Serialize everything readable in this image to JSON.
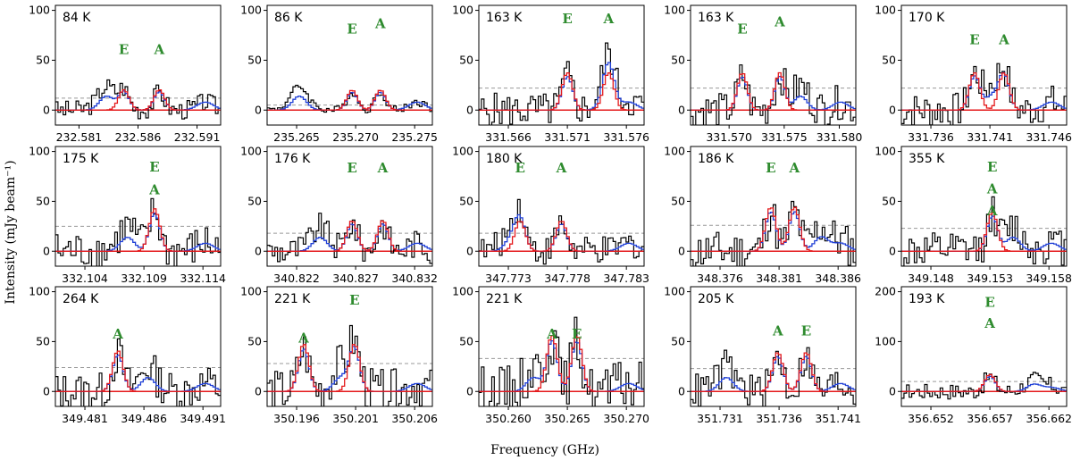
{
  "chart_data": {
    "type": "line",
    "title": "",
    "xlabel": "Frequency (GHz)",
    "ylabel": "Intensity (mJy beam$^{-1}$)",
    "ylabel_display": "Intensity (mJy beam⁻¹)",
    "colors": {
      "observed": "#000000",
      "model_target": "#e41a1c",
      "model_total": "#1f3fd6",
      "noise": "#999999",
      "annotation": "#2e8b2e"
    },
    "panels": [
      {
        "label": "84 K",
        "ticks": [
          "232.581",
          "232.586",
          "232.591"
        ],
        "xlim": [
          232.579,
          232.593
        ],
        "ylim": [
          -15,
          105
        ],
        "yticks": [
          0,
          50,
          100
        ],
        "noise": 12,
        "annotations": [
          {
            "text": "E",
            "x": 232.5848,
            "y": 56
          },
          {
            "text": "A",
            "x": 232.5878,
            "y": 56
          }
        ]
      },
      {
        "label": "86 K",
        "ticks": [
          "235.265",
          "235.270",
          "235.275"
        ],
        "xlim": [
          235.2625,
          235.2765
        ],
        "ylim": [
          -15,
          105
        ],
        "yticks": [
          0,
          50,
          100
        ],
        "noise": 5,
        "annotations": [
          {
            "text": "E",
            "x": 235.2697,
            "y": 77
          },
          {
            "text": "A",
            "x": 235.2721,
            "y": 82
          }
        ]
      },
      {
        "label": "163 K",
        "ticks": [
          "331.566",
          "331.571",
          "331.576"
        ],
        "xlim": [
          331.5635,
          331.5775
        ],
        "ylim": [
          -15,
          105
        ],
        "yticks": [
          0,
          50,
          100
        ],
        "noise": 22,
        "annotations": [
          {
            "text": "E",
            "x": 331.571,
            "y": 87
          },
          {
            "text": "A",
            "x": 331.5745,
            "y": 87
          }
        ]
      },
      {
        "label": "163 K",
        "ticks": [
          "331.570",
          "331.575",
          "331.580"
        ],
        "xlim": [
          331.5665,
          331.5815
        ],
        "ylim": [
          -15,
          105
        ],
        "yticks": [
          0,
          50,
          100
        ],
        "noise": 22,
        "annotations": [
          {
            "text": "E",
            "x": 331.5712,
            "y": 77
          },
          {
            "text": "A",
            "x": 331.5746,
            "y": 84
          }
        ]
      },
      {
        "label": "170 K",
        "ticks": [
          "331.736",
          "331.741",
          "331.746"
        ],
        "xlim": [
          331.7335,
          331.7475
        ],
        "ylim": [
          -15,
          105
        ],
        "yticks": [
          0,
          50,
          100
        ],
        "noise": 22,
        "annotations": [
          {
            "text": "E",
            "x": 331.7397,
            "y": 66
          },
          {
            "text": "A",
            "x": 331.7422,
            "y": 66
          }
        ]
      },
      {
        "label": "175 K",
        "ticks": [
          "332.104",
          "332.109",
          "332.114"
        ],
        "xlim": [
          332.1015,
          332.1155
        ],
        "ylim": [
          -15,
          105
        ],
        "yticks": [
          0,
          50,
          100
        ],
        "noise": 25,
        "annotations": [
          {
            "text": "E",
            "x": 332.1099,
            "y": 80
          },
          {
            "text": "A",
            "x": 332.1099,
            "y": 57
          }
        ]
      },
      {
        "label": "176 K",
        "ticks": [
          "340.822",
          "340.827",
          "340.832"
        ],
        "xlim": [
          340.8195,
          340.8335
        ],
        "ylim": [
          -15,
          105
        ],
        "yticks": [
          0,
          50,
          100
        ],
        "noise": 18,
        "annotations": [
          {
            "text": "E",
            "x": 340.8267,
            "y": 79
          },
          {
            "text": "A",
            "x": 340.8293,
            "y": 79
          }
        ]
      },
      {
        "label": "180 K",
        "ticks": [
          "347.773",
          "347.778",
          "347.783"
        ],
        "xlim": [
          347.7705,
          347.7845
        ],
        "ylim": [
          -15,
          105
        ],
        "yticks": [
          0,
          50,
          100
        ],
        "noise": 18,
        "annotations": [
          {
            "text": "E",
            "x": 347.774,
            "y": 79
          },
          {
            "text": "A",
            "x": 347.7775,
            "y": 79
          }
        ]
      },
      {
        "label": "186 K",
        "ticks": [
          "348.376",
          "348.381",
          "348.386"
        ],
        "xlim": [
          348.3735,
          348.3875
        ],
        "ylim": [
          -15,
          105
        ],
        "yticks": [
          0,
          50,
          100
        ],
        "noise": 26,
        "annotations": [
          {
            "text": "E",
            "x": 348.3803,
            "y": 79
          },
          {
            "text": "A",
            "x": 348.3823,
            "y": 79
          }
        ]
      },
      {
        "label": "355 K",
        "ticks": [
          "349.148",
          "349.153",
          "349.158"
        ],
        "xlim": [
          349.1455,
          349.1595
        ],
        "ylim": [
          -15,
          105
        ],
        "yticks": [
          0,
          50,
          100
        ],
        "noise": 23,
        "annotations": [
          {
            "text": "E",
            "x": 349.1532,
            "y": 80
          },
          {
            "text": "A",
            "x": 349.1532,
            "y": 58
          },
          {
            "text": "A",
            "x": 349.1532,
            "y": 36
          }
        ]
      },
      {
        "label": "264 K",
        "ticks": [
          "349.481",
          "349.486",
          "349.491"
        ],
        "xlim": [
          349.4785,
          349.4925
        ],
        "ylim": [
          -15,
          105
        ],
        "yticks": [
          0,
          50,
          100
        ],
        "noise": 24,
        "annotations": [
          {
            "text": "A",
            "x": 349.4838,
            "y": 53
          }
        ]
      },
      {
        "label": "221 K",
        "ticks": [
          "350.196",
          "350.201",
          "350.206"
        ],
        "xlim": [
          350.1935,
          350.2075
        ],
        "ylim": [
          -15,
          105
        ],
        "yticks": [
          0,
          50,
          100
        ],
        "noise": 28,
        "annotations": [
          {
            "text": "A",
            "x": 350.1966,
            "y": 49
          },
          {
            "text": "E",
            "x": 350.2009,
            "y": 87
          }
        ]
      },
      {
        "label": "221 K",
        "ticks": [
          "350.260",
          "350.265",
          "350.270"
        ],
        "xlim": [
          350.2575,
          350.2715
        ],
        "ylim": [
          -15,
          105
        ],
        "yticks": [
          0,
          50,
          100
        ],
        "noise": 33,
        "annotations": [
          {
            "text": "A",
            "x": 350.2637,
            "y": 53
          },
          {
            "text": "E",
            "x": 350.2658,
            "y": 53
          }
        ]
      },
      {
        "label": "205 K",
        "ticks": [
          "351.731",
          "351.736",
          "351.741"
        ],
        "xlim": [
          351.7285,
          351.7425
        ],
        "ylim": [
          -15,
          105
        ],
        "yticks": [
          0,
          50,
          100
        ],
        "noise": 23,
        "annotations": [
          {
            "text": "A",
            "x": 351.7359,
            "y": 56
          },
          {
            "text": "E",
            "x": 351.7383,
            "y": 56
          }
        ]
      },
      {
        "label": "193 K",
        "ticks": [
          "356.652",
          "356.657",
          "356.662"
        ],
        "xlim": [
          356.6495,
          356.6635
        ],
        "ylim": [
          -30,
          210
        ],
        "yticks": [
          0,
          100,
          200
        ],
        "noise": 20,
        "annotations": [
          {
            "text": "E",
            "x": 356.657,
            "y": 170
          },
          {
            "text": "A",
            "x": 356.657,
            "y": 128
          }
        ]
      }
    ]
  }
}
